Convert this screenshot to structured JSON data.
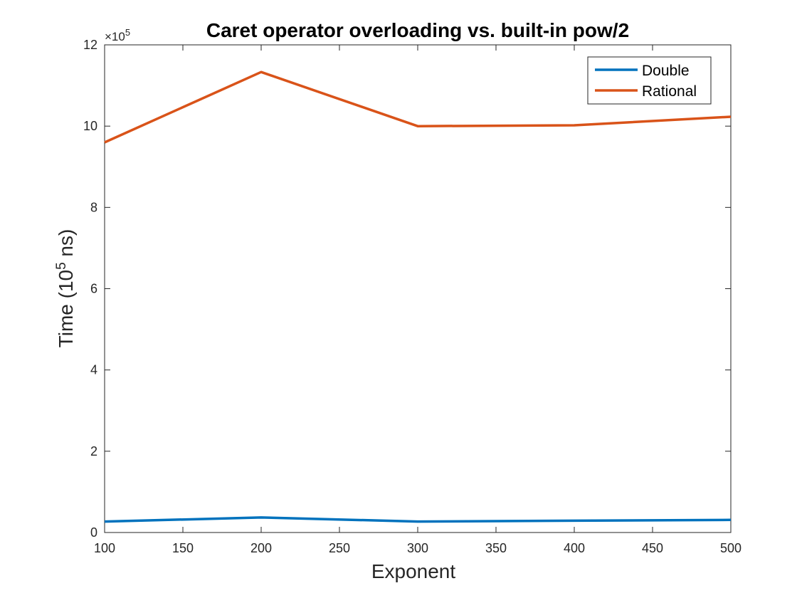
{
  "chart_data": {
    "type": "line",
    "title": "Caret operator overloading vs. built-in pow/2",
    "xlabel": "Exponent",
    "ylabel": {
      "prefix": "Time (10",
      "superscript": "5",
      "suffix": " ns)"
    },
    "y_exponent_label": {
      "prefix": "×10",
      "superscript": "5"
    },
    "xlim": [
      100,
      500
    ],
    "ylim": [
      0,
      12
    ],
    "xticks": [
      100,
      150,
      200,
      250,
      300,
      350,
      400,
      450,
      500
    ],
    "yticks": [
      0,
      2,
      4,
      6,
      8,
      10,
      12
    ],
    "grid": false,
    "legend_position": "top-right",
    "x": [
      100,
      200,
      300,
      400,
      500
    ],
    "series": [
      {
        "name": "Double",
        "color": "#0072bd",
        "values": [
          0.27,
          0.37,
          0.27,
          0.29,
          0.31
        ]
      },
      {
        "name": "Rational",
        "color": "#d95319",
        "values": [
          9.6,
          11.33,
          10.0,
          10.02,
          10.23
        ]
      }
    ]
  }
}
